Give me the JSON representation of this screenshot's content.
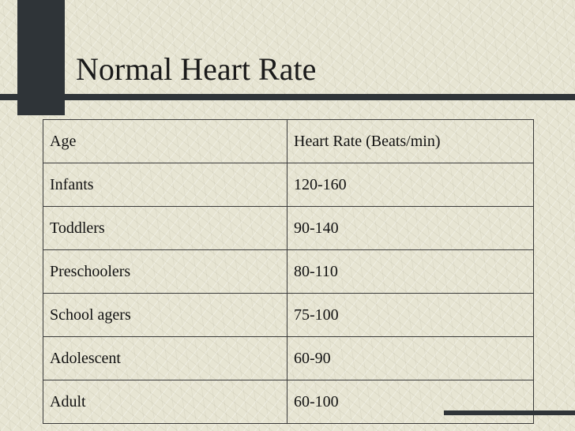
{
  "slide": {
    "title": "Normal Heart Rate"
  },
  "table": {
    "header": {
      "age": "Age",
      "rate": "Heart Rate (Beats/min)"
    },
    "rows": [
      {
        "age": "Infants",
        "rate": "120-160"
      },
      {
        "age": "Toddlers",
        "rate": "90-140"
      },
      {
        "age": "Preschoolers",
        "rate": "80-110"
      },
      {
        "age": "School agers",
        "rate": "75-100"
      },
      {
        "age": "Adolescent",
        "rate": "60-90"
      },
      {
        "age": "Adult",
        "rate": "60-100"
      }
    ]
  },
  "colors": {
    "background": "#e7e5d3",
    "accent_bar": "#2f3438"
  }
}
